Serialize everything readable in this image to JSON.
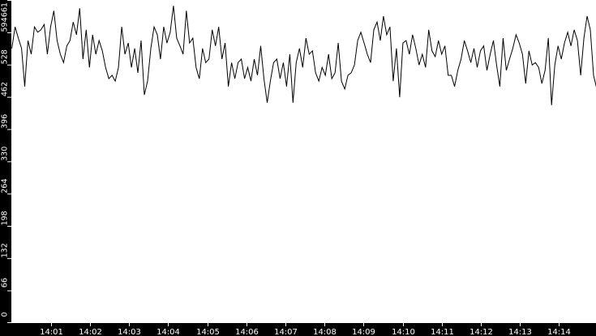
{
  "chart_data": {
    "type": "line",
    "title": "",
    "xlabel": "",
    "ylabel": "",
    "x_start": "14:00:00",
    "x_end": "14:14:58",
    "ylim": [
      0,
      661
    ],
    "y_ticks": [
      "0",
      "66",
      "132",
      "198",
      "264",
      "330",
      "396",
      "462",
      "528",
      "594",
      "661"
    ],
    "x_ticks": [
      "14:01",
      "14:02",
      "14:03",
      "14:04",
      "14:05",
      "14:06",
      "14:07",
      "14:08",
      "14:09",
      "14:10",
      "14:11",
      "14:12",
      "14:13",
      "14:14"
    ],
    "grid": false,
    "colors": {
      "background": "#ffffff",
      "axis_background": "#000000",
      "axis_text": "#ffffff",
      "line": "#000000"
    },
    "series": [
      {
        "values": [
          562,
          606,
          583,
          562,
          484,
          578,
          550,
          606,
          595,
          600,
          611,
          550,
          606,
          639,
          578,
          550,
          533,
          567,
          578,
          616,
          590,
          644,
          540,
          600,
          523,
          590,
          550,
          578,
          557,
          523,
          500,
          507,
          495,
          523,
          606,
          550,
          573,
          523,
          562,
          512,
          578,
          467,
          495,
          562,
          606,
          590,
          540,
          606,
          573,
          595,
          649,
          583,
          567,
          550,
          639,
          573,
          583,
          523,
          500,
          562,
          533,
          540,
          600,
          567,
          606,
          540,
          573,
          484,
          533,
          500,
          533,
          540,
          500,
          523,
          495,
          540,
          507,
          567,
          500,
          451,
          495,
          533,
          540,
          500,
          533,
          484,
          550,
          451,
          533,
          562,
          523,
          583,
          550,
          557,
          512,
          495,
          523,
          507,
          550,
          500,
          512,
          573,
          495,
          479,
          507,
          512,
          528,
          578,
          595,
          573,
          550,
          533,
          600,
          616,
          578,
          628,
          590,
          606,
          495,
          562,
          462,
          573,
          578,
          550,
          590,
          562,
          528,
          550,
          523,
          600,
          557,
          545,
          578,
          550,
          567,
          507,
          507,
          484,
          517,
          540,
          578,
          557,
          533,
          562,
          523,
          557,
          567,
          517,
          550,
          578,
          528,
          484,
          583,
          517,
          540,
          562,
          590,
          573,
          550,
          490,
          557,
          528,
          533,
          523,
          490,
          517,
          583,
          446,
          528,
          567,
          540,
          573,
          595,
          567,
          600,
          578,
          507,
          583,
          628,
          600,
          507,
          479
        ]
      }
    ]
  }
}
